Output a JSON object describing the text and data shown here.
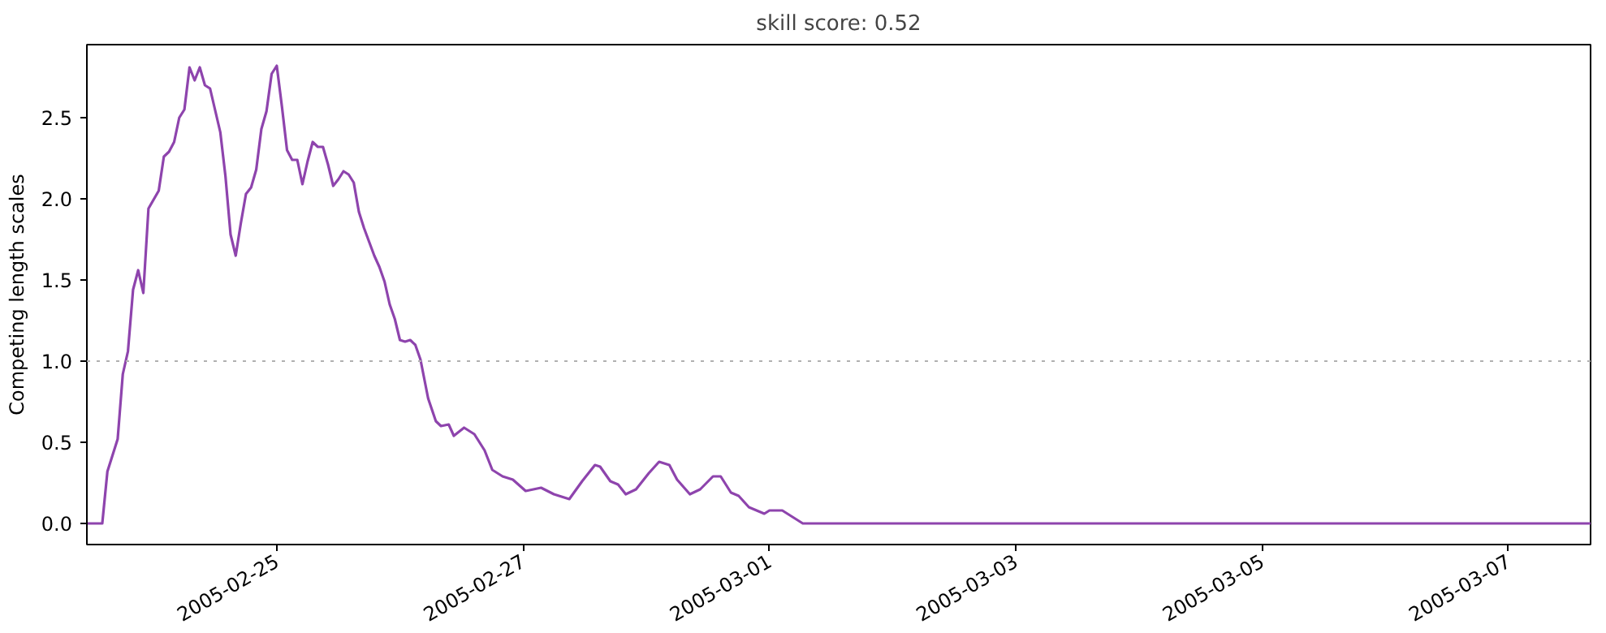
{
  "chart_data": {
    "type": "line",
    "title": "skill score: 0.52",
    "ylabel": "Competing length scales",
    "x": [
      "2005-02-23T11:00",
      "2005-02-23T14:00",
      "2005-02-23T15:00",
      "2005-02-23T17:00",
      "2005-02-23T18:00",
      "2005-02-23T19:00",
      "2005-02-23T20:00",
      "2005-02-23T21:00",
      "2005-02-23T22:00",
      "2005-02-23T23:00",
      "2005-02-24T01:00",
      "2005-02-24T02:00",
      "2005-02-24T03:00",
      "2005-02-24T04:00",
      "2005-02-24T05:00",
      "2005-02-24T06:00",
      "2005-02-24T07:00",
      "2005-02-24T08:00",
      "2005-02-24T09:00",
      "2005-02-24T10:00",
      "2005-02-24T11:00",
      "2005-02-24T13:00",
      "2005-02-24T14:00",
      "2005-02-24T15:00",
      "2005-02-24T16:00",
      "2005-02-24T17:00",
      "2005-02-24T18:00",
      "2005-02-24T19:00",
      "2005-02-24T20:00",
      "2005-02-24T21:00",
      "2005-02-24T22:00",
      "2005-02-24T23:00",
      "2005-02-25T00:00",
      "2005-02-25T01:00",
      "2005-02-25T02:00",
      "2005-02-25T03:00",
      "2005-02-25T04:00",
      "2005-02-25T05:00",
      "2005-02-25T06:00",
      "2005-02-25T07:00",
      "2005-02-25T08:00",
      "2005-02-25T09:00",
      "2005-02-25T10:00",
      "2005-02-25T11:00",
      "2005-02-25T12:00",
      "2005-02-25T13:00",
      "2005-02-25T14:00",
      "2005-02-25T15:00",
      "2005-02-25T16:00",
      "2005-02-25T17:00",
      "2005-02-25T19:00",
      "2005-02-25T20:00",
      "2005-02-25T21:00",
      "2005-02-25T22:00",
      "2005-02-25T23:00",
      "2005-02-26T00:00",
      "2005-02-26T01:00",
      "2005-02-26T02:00",
      "2005-02-26T03:00",
      "2005-02-26T04:00",
      "2005-02-26T05:30",
      "2005-02-26T07:00",
      "2005-02-26T08:00",
      "2005-02-26T09:30",
      "2005-02-26T10:30",
      "2005-02-26T12:30",
      "2005-02-26T14:30",
      "2005-02-26T16:30",
      "2005-02-26T18:00",
      "2005-02-26T20:00",
      "2005-02-26T22:00",
      "2005-02-27T00:30",
      "2005-02-27T03:30",
      "2005-02-27T06:00",
      "2005-02-27T09:00",
      "2005-02-27T11:30",
      "2005-02-27T14:00",
      "2005-02-27T15:00",
      "2005-02-27T17:00",
      "2005-02-27T18:30",
      "2005-02-27T20:00",
      "2005-02-27T22:00",
      "2005-02-28T00:30",
      "2005-02-28T02:30",
      "2005-02-28T04:30",
      "2005-02-28T06:00",
      "2005-02-28T08:30",
      "2005-02-28T10:30",
      "2005-02-28T13:00",
      "2005-02-28T14:30",
      "2005-02-28T16:30",
      "2005-02-28T18:00",
      "2005-02-28T20:00",
      "2005-02-28T23:00",
      "2005-03-01T00:00",
      "2005-03-01T02:30",
      "2005-03-01T04:00",
      "2005-03-01T06:30",
      "2005-03-07T16:00"
    ],
    "series": [
      {
        "color": "#8e44ad",
        "values": [
          0,
          0,
          0.32,
          0.52,
          0.92,
          1.06,
          1.44,
          1.56,
          1.42,
          1.94,
          2.05,
          2.26,
          2.29,
          2.35,
          2.5,
          2.55,
          2.81,
          2.73,
          2.81,
          2.7,
          2.68,
          2.41,
          2.14,
          1.78,
          1.65,
          1.85,
          2.03,
          2.07,
          2.18,
          2.43,
          2.54,
          2.77,
          2.82,
          2.57,
          2.3,
          2.24,
          2.24,
          2.09,
          2.23,
          2.35,
          2.32,
          2.32,
          2.21,
          2.08,
          2.12,
          2.17,
          2.15,
          2.1,
          1.92,
          1.82,
          1.65,
          1.58,
          1.49,
          1.35,
          1.26,
          1.13,
          1.12,
          1.13,
          1.1,
          1.01,
          0.77,
          0.63,
          0.6,
          0.61,
          0.54,
          0.59,
          0.55,
          0.45,
          0.33,
          0.29,
          0.27,
          0.2,
          0.22,
          0.18,
          0.15,
          0.26,
          0.36,
          0.35,
          0.26,
          0.24,
          0.18,
          0.21,
          0.31,
          0.38,
          0.36,
          0.27,
          0.18,
          0.21,
          0.29,
          0.29,
          0.19,
          0.17,
          0.1,
          0.06,
          0.08,
          0.08,
          0.05,
          0,
          0
        ]
      }
    ],
    "xlim": [
      "2005-02-23T11:00",
      "2005-03-07T16:00"
    ],
    "xticks": [
      "2005-02-25",
      "2005-02-27",
      "2005-03-01",
      "2005-03-03",
      "2005-03-05",
      "2005-03-07"
    ],
    "ylim": [
      -0.13,
      2.95
    ],
    "yticks": [
      {
        "value": 0,
        "label": "0.0"
      },
      0.5,
      {
        "value": 1,
        "label": "1.0"
      },
      1.5,
      {
        "value": 2,
        "label": "2.0"
      },
      2.5
    ],
    "ref_lines": [
      {
        "axis": "y",
        "value": 1.0,
        "color": "#b0b0b0",
        "line_style": "dotted"
      }
    ],
    "grid": false
  }
}
